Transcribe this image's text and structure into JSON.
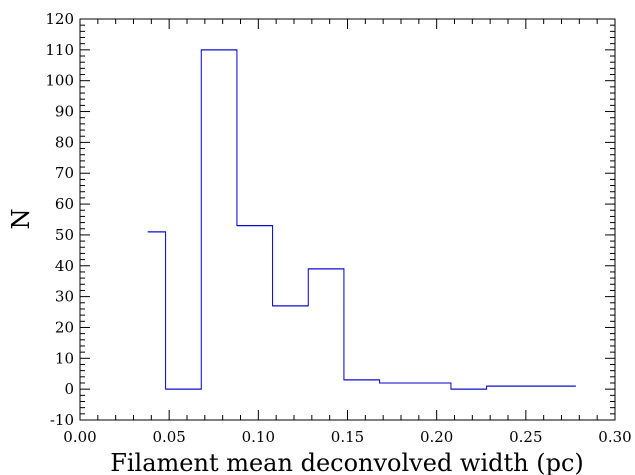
{
  "chart_data": {
    "type": "histogram",
    "xlabel": "Filament mean deconvolved width (pc)",
    "ylabel": "N",
    "xlim": [
      0.0,
      0.3
    ],
    "ylim": [
      -10,
      120
    ],
    "x_ticks": [
      "0.00",
      "0.05",
      "0.10",
      "0.15",
      "0.20",
      "0.25",
      "0.30"
    ],
    "y_ticks": [
      "-10",
      "0",
      "10",
      "20",
      "30",
      "40",
      "50",
      "60",
      "70",
      "80",
      "90",
      "100",
      "110",
      "120"
    ],
    "grid": false,
    "line_color": "#0000cc",
    "bins": [
      {
        "x0": 0.038,
        "x1": 0.048,
        "value": 51
      },
      {
        "x0": 0.048,
        "x1": 0.068,
        "value": 0
      },
      {
        "x0": 0.068,
        "x1": 0.088,
        "value": 110
      },
      {
        "x0": 0.088,
        "x1": 0.108,
        "value": 53
      },
      {
        "x0": 0.108,
        "x1": 0.128,
        "value": 27
      },
      {
        "x0": 0.128,
        "x1": 0.148,
        "value": 39
      },
      {
        "x0": 0.148,
        "x1": 0.168,
        "value": 3
      },
      {
        "x0": 0.168,
        "x1": 0.208,
        "value": 2
      },
      {
        "x0": 0.208,
        "x1": 0.228,
        "value": 0
      },
      {
        "x0": 0.228,
        "x1": 0.278,
        "value": 1
      }
    ]
  }
}
